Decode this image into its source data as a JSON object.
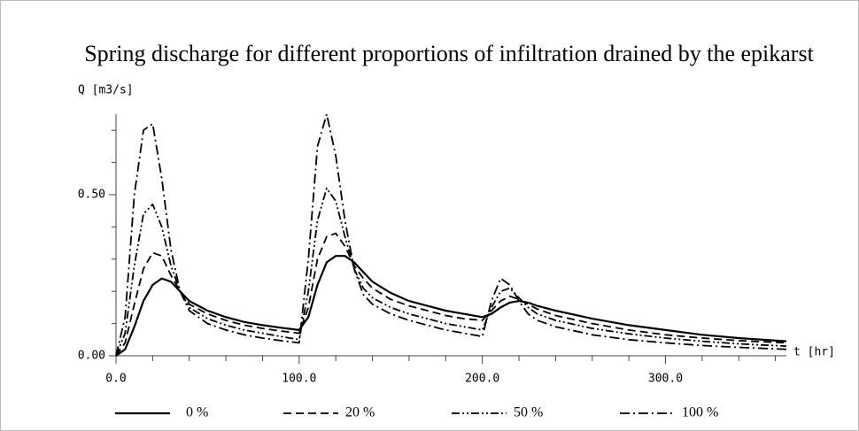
{
  "chart_data": {
    "type": "line",
    "title": "Spring discharge for different proportions of infiltration drained by the epikarst",
    "y_label": "Q [m3/s]",
    "x_label": "t [hr]",
    "x": [
      0,
      5,
      10,
      15,
      20,
      25,
      30,
      35,
      40,
      50,
      60,
      70,
      80,
      90,
      100,
      105,
      110,
      115,
      120,
      125,
      130,
      135,
      140,
      150,
      160,
      170,
      180,
      190,
      200,
      205,
      210,
      215,
      220,
      225,
      230,
      240,
      260,
      280,
      300,
      320,
      340,
      366
    ],
    "series": [
      {
        "name": "0 %",
        "color": "#000000",
        "dash": "solid",
        "values": [
          0,
          0.02,
          0.09,
          0.17,
          0.22,
          0.24,
          0.23,
          0.2,
          0.17,
          0.14,
          0.12,
          0.105,
          0.095,
          0.087,
          0.08,
          0.12,
          0.22,
          0.29,
          0.31,
          0.31,
          0.29,
          0.26,
          0.23,
          0.195,
          0.17,
          0.155,
          0.14,
          0.13,
          0.12,
          0.13,
          0.15,
          0.165,
          0.17,
          0.165,
          0.155,
          0.14,
          0.115,
          0.095,
          0.08,
          0.065,
          0.055,
          0.045
        ]
      },
      {
        "name": "20 %",
        "color": "#000000",
        "dash": "dashed",
        "values": [
          0,
          0.04,
          0.16,
          0.27,
          0.32,
          0.31,
          0.25,
          0.2,
          0.16,
          0.13,
          0.11,
          0.095,
          0.085,
          0.077,
          0.07,
          0.15,
          0.3,
          0.37,
          0.38,
          0.34,
          0.28,
          0.24,
          0.21,
          0.175,
          0.155,
          0.14,
          0.125,
          0.115,
          0.11,
          0.14,
          0.17,
          0.185,
          0.175,
          0.16,
          0.145,
          0.125,
          0.1,
          0.08,
          0.065,
          0.055,
          0.047,
          0.04
        ]
      },
      {
        "name": "50 %",
        "color": "#000000",
        "dash": "dash-dot-dot",
        "values": [
          0,
          0.07,
          0.28,
          0.44,
          0.47,
          0.4,
          0.28,
          0.2,
          0.15,
          0.115,
          0.095,
          0.08,
          0.07,
          0.06,
          0.05,
          0.2,
          0.42,
          0.52,
          0.48,
          0.37,
          0.27,
          0.21,
          0.18,
          0.15,
          0.13,
          0.115,
          0.1,
          0.09,
          0.08,
          0.15,
          0.2,
          0.21,
          0.18,
          0.15,
          0.13,
          0.11,
          0.085,
          0.068,
          0.055,
          0.045,
          0.037,
          0.03
        ]
      },
      {
        "name": "100 %",
        "color": "#000000",
        "dash": "dash-dot",
        "values": [
          0,
          0.12,
          0.5,
          0.7,
          0.72,
          0.55,
          0.33,
          0.2,
          0.14,
          0.1,
          0.08,
          0.065,
          0.055,
          0.047,
          0.04,
          0.3,
          0.65,
          0.75,
          0.62,
          0.42,
          0.27,
          0.19,
          0.16,
          0.13,
          0.11,
          0.095,
          0.08,
          0.07,
          0.06,
          0.17,
          0.24,
          0.22,
          0.17,
          0.13,
          0.11,
          0.09,
          0.065,
          0.05,
          0.04,
          0.032,
          0.026,
          0.02
        ]
      }
    ],
    "xlim": [
      0,
      366
    ],
    "xticks": [
      {
        "value": 0,
        "label": "0.0"
      },
      {
        "value": 100,
        "label": "100.0"
      },
      {
        "value": 200,
        "label": "200.0"
      },
      {
        "value": 300,
        "label": "300.0"
      }
    ],
    "xminor_ticks": [
      20,
      40,
      60,
      80,
      120,
      140,
      160,
      180,
      220,
      240,
      260,
      280,
      320,
      340,
      360
    ],
    "ylim": [
      0,
      0.75
    ],
    "yticks": [
      {
        "value": 0,
        "label": "0.00"
      },
      {
        "value": 0.5,
        "label": "0.50"
      }
    ],
    "yminor_ticks": [
      0.1,
      0.2,
      0.3,
      0.4,
      0.6,
      0.7
    ],
    "grid": false,
    "legend": "bottom"
  }
}
